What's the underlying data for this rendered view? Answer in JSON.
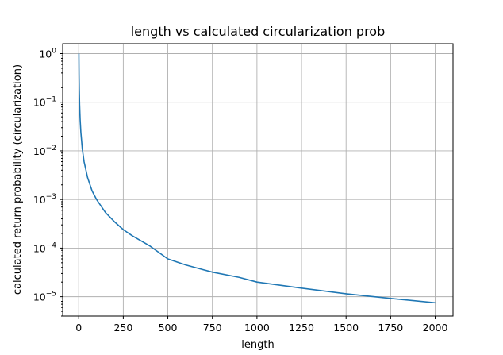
{
  "colors": {
    "series": "#1f77b4",
    "grid": "#b0b0b0",
    "axis": "#000000",
    "background": "#ffffff"
  },
  "chart_data": {
    "type": "line",
    "title": "length vs calculated circularization prob",
    "xlabel": "length",
    "ylabel": "calculated return probability (circularization)",
    "yscale": "log",
    "grid": true,
    "xlim": [
      -90,
      2100
    ],
    "ylim": [
      4e-06,
      1.6
    ],
    "xticks": [
      0,
      250,
      500,
      750,
      1000,
      1250,
      1500,
      1750,
      2000
    ],
    "yticks": [
      {
        "value": 1,
        "base": "10",
        "exp": "0"
      },
      {
        "value": 0.1,
        "base": "10",
        "exp": "−1"
      },
      {
        "value": 0.01,
        "base": "10",
        "exp": "−2"
      },
      {
        "value": 0.001,
        "base": "10",
        "exp": "−3"
      },
      {
        "value": 0.0001,
        "base": "10",
        "exp": "−4"
      },
      {
        "value": 1e-05,
        "base": "10",
        "exp": "−5"
      }
    ],
    "series": [
      {
        "color": "#1f77b4",
        "x": [
          1,
          2,
          3,
          5,
          8,
          12,
          20,
          30,
          50,
          75,
          100,
          150,
          200,
          250,
          300,
          400,
          500,
          600,
          750,
          900,
          1000,
          1250,
          1500,
          1750,
          2000
        ],
        "y": [
          1.0,
          0.35,
          0.19,
          0.089,
          0.044,
          0.024,
          0.011,
          0.006,
          0.0028,
          0.0015,
          0.001,
          0.00054,
          0.00035,
          0.00024,
          0.00018,
          0.00011,
          6e-05,
          4.5e-05,
          3.2e-05,
          2.5e-05,
          2e-05,
          1.5e-05,
          1.15e-05,
          9.2e-06,
          7.5e-06
        ]
      }
    ]
  }
}
